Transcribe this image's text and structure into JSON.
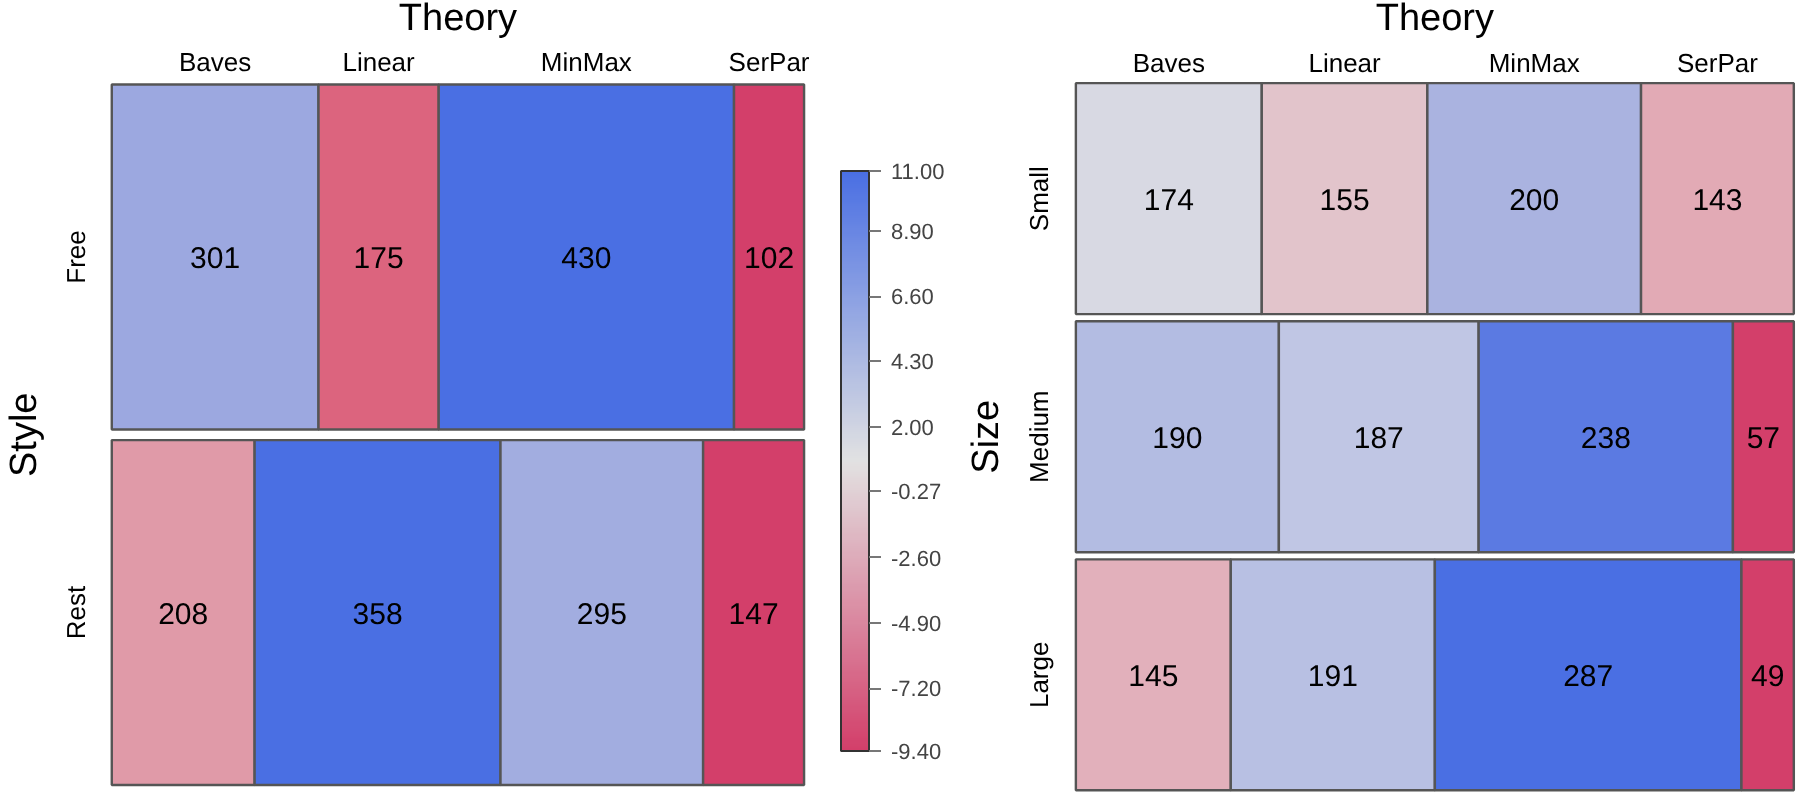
{
  "chart_data": [
    {
      "type": "bar",
      "stacked": true,
      "orientation": "horizontal",
      "data_labels": true,
      "title": "Theory",
      "ylabel": "Style",
      "categories": [
        "Free",
        "Rest"
      ],
      "series": [
        {
          "name": "Baves",
          "values": [
            301,
            208
          ],
          "colors": [
            "#9ca8e0",
            "#e09aa8"
          ]
        },
        {
          "name": "Linear",
          "values": [
            175,
            358
          ],
          "colors": [
            "#dc647e",
            "#4a6fe3"
          ]
        },
        {
          "name": "MinMax",
          "values": [
            430,
            295
          ],
          "colors": [
            "#4a6fe3",
            "#a2ade0"
          ]
        },
        {
          "name": "SerPar",
          "values": [
            102,
            147
          ],
          "colors": [
            "#d33f6a",
            "#d33f6a"
          ]
        }
      ],
      "clim": [
        -9.4,
        11
      ],
      "cticks": [
        {
          "value": 11,
          "label": "11.00"
        },
        {
          "value": 8.9,
          "label": "8.90"
        },
        {
          "value": 6.6,
          "label": "6.60"
        },
        {
          "value": 4.3,
          "label": "4.30"
        },
        {
          "value": 2,
          "label": "2.00"
        },
        {
          "value": -0.27,
          "label": "-0.27"
        },
        {
          "value": -2.6,
          "label": "-2.60"
        },
        {
          "value": -4.9,
          "label": "-4.90"
        },
        {
          "value": -7.2,
          "label": "-7.20"
        },
        {
          "value": -9.4,
          "label": "-9.40"
        }
      ]
    },
    {
      "type": "bar",
      "stacked": true,
      "orientation": "horizontal",
      "data_labels": true,
      "title": "Theory",
      "ylabel": "Size",
      "categories": [
        "Small",
        "Medium",
        "Large"
      ],
      "series": [
        {
          "name": "Baves",
          "values": [
            174,
            190,
            145
          ],
          "colors": [
            "#d8d9e3",
            "#b3bce2",
            "#e2b0bb"
          ]
        },
        {
          "name": "Linear",
          "values": [
            155,
            187,
            191
          ],
          "colors": [
            "#e2c4cb",
            "#c0c6e4",
            "#b8c0e3"
          ]
        },
        {
          "name": "MinMax",
          "values": [
            200,
            238,
            287
          ],
          "colors": [
            "#aab3e0",
            "#5b7ae2",
            "#4a6fe3"
          ]
        },
        {
          "name": "SerPar",
          "values": [
            143,
            57,
            49
          ],
          "colors": [
            "#e2aab5",
            "#d33f6a",
            "#d33f6a"
          ]
        }
      ]
    }
  ]
}
